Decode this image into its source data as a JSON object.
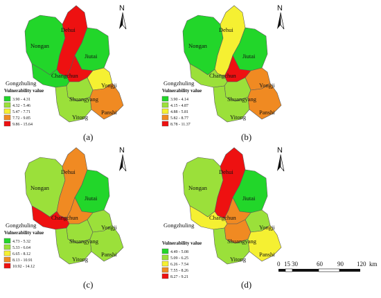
{
  "panels": [
    {
      "caption": "(a)",
      "legend_title": "Vulnerability value",
      "legend": [
        {
          "label": "3.90 - 4.31",
          "color": "#22d62a"
        },
        {
          "label": "4.32 - 5.46",
          "color": "#9be03a"
        },
        {
          "label": "5.47 - 7.71",
          "color": "#f5f032"
        },
        {
          "label": "7.72 - 9.85",
          "color": "#f08a22"
        },
        {
          "label": "9.86 - 15.64",
          "color": "#ee1111"
        }
      ],
      "regions": {
        "Dehui": {
          "name": "Dehui",
          "color": "#ee1111"
        },
        "Nongan": {
          "name": "Nongan",
          "color": "#22d62a"
        },
        "Jiutai": {
          "name": "Jiutai",
          "color": "#22d62a"
        },
        "Changchun": {
          "name": "Changchun",
          "color": "#ee1111"
        },
        "Gongzhuling": {
          "name": "Gongzhuling",
          "color": "#22d62a"
        },
        "Yongji": {
          "name": "Yongji",
          "color": "#f5f032"
        },
        "Shuangyang": {
          "name": "Shuangyang",
          "color": "#9be03a"
        },
        "Yitong": {
          "name": "Yitong",
          "color": "#9be03a"
        },
        "Panshi": {
          "name": "Panshi",
          "color": "#f08a22"
        }
      }
    },
    {
      "caption": "(b)",
      "legend_title": "Vulnerability value",
      "legend": [
        {
          "label": "3.90 - 4.14",
          "color": "#22d62a"
        },
        {
          "label": "4.15 - 4.87",
          "color": "#9be03a"
        },
        {
          "label": "4.88 - 5.81",
          "color": "#f5f032"
        },
        {
          "label": "5.82 - 8.77",
          "color": "#f08a22"
        },
        {
          "label": "8.78 - 11.37",
          "color": "#ee1111"
        }
      ],
      "regions": {
        "Dehui": {
          "name": "Dehui",
          "color": "#f5f032"
        },
        "Nongan": {
          "name": "Nongan",
          "color": "#22d62a"
        },
        "Jiutai": {
          "name": "Jiutai",
          "color": "#22d62a"
        },
        "Changchun": {
          "name": "Changchun",
          "color": "#ee1111"
        },
        "Gongzhuling": {
          "name": "Gongzhuling",
          "color": "#9be03a"
        },
        "Yongji": {
          "name": "Yongji",
          "color": "#f08a22"
        },
        "Shuangyang": {
          "name": "Shuangyang",
          "color": "#9be03a"
        },
        "Yitong": {
          "name": "Yitong",
          "color": "#9be03a"
        },
        "Panshi": {
          "name": "Panshi",
          "color": "#f08a22"
        }
      }
    },
    {
      "caption": "(c)",
      "legend_title": "Vulnerability value",
      "legend": [
        {
          "label": "4.73 - 5.32",
          "color": "#22d62a"
        },
        {
          "label": "5.33 - 6.64",
          "color": "#9be03a"
        },
        {
          "label": "6.65 - 8.12",
          "color": "#f5f032"
        },
        {
          "label": "8.13 - 10.91",
          "color": "#f08a22"
        },
        {
          "label": "10.92 - 14.12",
          "color": "#ee1111"
        }
      ],
      "regions": {
        "Dehui": {
          "name": "Dehui",
          "color": "#f08a22"
        },
        "Nongan": {
          "name": "Nongan",
          "color": "#9be03a"
        },
        "Jiutai": {
          "name": "Jiutai",
          "color": "#22d62a"
        },
        "Changchun": {
          "name": "Changchun",
          "color": "#f08a22"
        },
        "Gongzhuling": {
          "name": "Gongzhuling",
          "color": "#ee1111"
        },
        "Yongji": {
          "name": "Yongji",
          "color": "#9be03a"
        },
        "Shuangyang": {
          "name": "Shuangyang",
          "color": "#9be03a"
        },
        "Yitong": {
          "name": "Yitong",
          "color": "#9be03a"
        },
        "Panshi": {
          "name": "Panshi",
          "color": "#9be03a"
        }
      }
    },
    {
      "caption": "(d)",
      "legend_title": "Vulnerability value",
      "legend": [
        {
          "label": "4.49 - 5.08",
          "color": "#22d62a"
        },
        {
          "label": "5.09 - 6.25",
          "color": "#9be03a"
        },
        {
          "label": "6.26 - 7.54",
          "color": "#f5f032"
        },
        {
          "label": "7.55 - 8.26",
          "color": "#f08a22"
        },
        {
          "label": "8.27 - 9.21",
          "color": "#ee1111"
        }
      ],
      "regions": {
        "Dehui": {
          "name": "Dehui",
          "color": "#ee1111"
        },
        "Nongan": {
          "name": "Nongan",
          "color": "#9be03a"
        },
        "Jiutai": {
          "name": "Jiutai",
          "color": "#22d62a"
        },
        "Changchun": {
          "name": "Changchun",
          "color": "#f08a22"
        },
        "Gongzhuling": {
          "name": "Gongzhuling",
          "color": "#f5f032"
        },
        "Yongji": {
          "name": "Yongji",
          "color": "#9be03a"
        },
        "Shuangyang": {
          "name": "Shuangyang",
          "color": "#f08a22"
        },
        "Yitong": {
          "name": "Yitong",
          "color": "#9be03a"
        },
        "Panshi": {
          "name": "Panshi",
          "color": "#f5f032"
        }
      }
    }
  ],
  "north_arrow_label": "N",
  "scale_bar": {
    "ticks": [
      "0",
      "15",
      "30",
      "60",
      "90",
      "120"
    ],
    "unit": "km"
  }
}
